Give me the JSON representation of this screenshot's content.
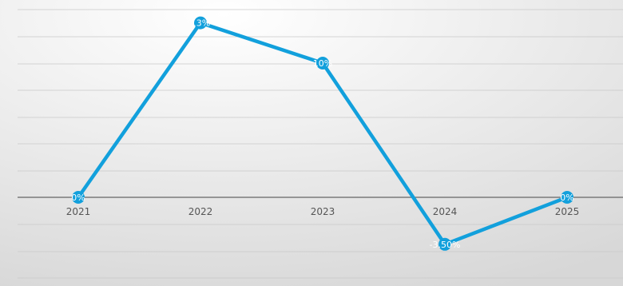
{
  "chart_data": {
    "type": "line",
    "title": "",
    "xlabel": "",
    "ylabel": "",
    "categories": [
      "2021",
      "2022",
      "2023",
      "2024",
      "2025"
    ],
    "series": [
      {
        "values": [
          0,
          13,
          10,
          -3.5,
          0
        ],
        "data_labels": [
          "0%",
          "13%",
          "10%",
          "-3.50%",
          "0%"
        ],
        "color": "#12a0dc"
      }
    ],
    "ylim": [
      -6,
      14
    ],
    "grid": true,
    "legend": "none",
    "colors": {
      "background_center": "#ffffff",
      "background_edge": "#d7d7d7",
      "gridline": "#c8c8c8",
      "zero_axis": "#7a7a7a",
      "line": "#12a0dc",
      "marker": "#12a0dc",
      "data_label_text": "#ffffff",
      "tick_text": "#555555"
    }
  }
}
